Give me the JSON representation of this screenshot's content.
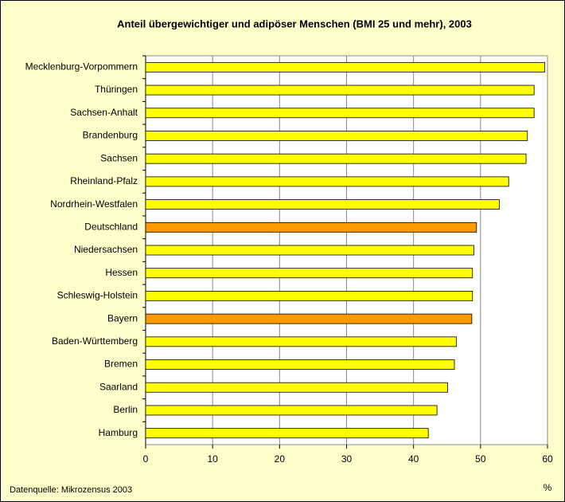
{
  "chart_data": {
    "type": "barh",
    "title": "Anteil übergewichtiger und adipöser Menschen (BMI 25 und mehr), 2003",
    "categories": [
      "Mecklenburg-Vorpommern",
      "Thüringen",
      "Sachsen-Anhalt",
      "Brandenburg",
      "Sachsen",
      "Rheinland-Pfalz",
      "Nordrhein-Westfalen",
      "Deutschland",
      "Niedersachsen",
      "Hessen",
      "Schleswig-Holstein",
      "Bayern",
      "Baden-Württemberg",
      "Bremen",
      "Saarland",
      "Berlin",
      "Hamburg"
    ],
    "values": [
      59.6,
      58.0,
      58.0,
      57.0,
      56.8,
      54.2,
      52.8,
      49.4,
      49.0,
      48.8,
      48.8,
      48.7,
      46.4,
      46.1,
      45.1,
      43.5,
      42.2
    ],
    "colors": [
      "#ffff00",
      "#ffff00",
      "#ffff00",
      "#ffff00",
      "#ffff00",
      "#ffff00",
      "#ffff00",
      "#ff9900",
      "#ffff00",
      "#ffff00",
      "#ffff00",
      "#ff9900",
      "#ffff00",
      "#ffff00",
      "#ffff00",
      "#ffff00",
      "#ffff00"
    ],
    "xlim": [
      0,
      60
    ],
    "xticks": [
      0,
      10,
      20,
      30,
      40,
      50,
      60
    ],
    "grid": true,
    "x_label": "%",
    "source": "Datenquelle: Mikrozensus 2003"
  }
}
